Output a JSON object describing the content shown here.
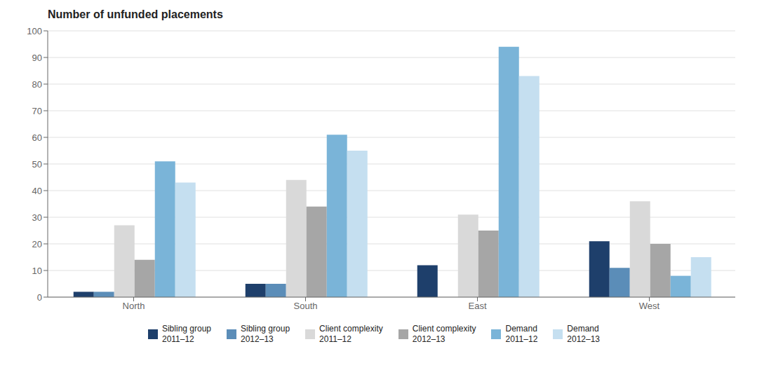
{
  "chart_data": {
    "type": "bar",
    "title": "Number of unfunded placements",
    "categories": [
      "North",
      "South",
      "East",
      "West"
    ],
    "series": [
      {
        "name": "Sibling group\n2011–12",
        "color": "#1e3f6b",
        "values": [
          2,
          5,
          12,
          21
        ]
      },
      {
        "name": "Sibling group\n2012–13",
        "color": "#5b8db8",
        "values": [
          2,
          5,
          0,
          11
        ]
      },
      {
        "name": "Client complexity\n2011–12",
        "color": "#d9d9d9",
        "values": [
          27,
          44,
          31,
          36
        ]
      },
      {
        "name": "Client complexity\n2012–13",
        "color": "#a6a6a6",
        "values": [
          14,
          34,
          25,
          20
        ]
      },
      {
        "name": "Demand\n2011–12",
        "color": "#7ab4d8",
        "values": [
          51,
          61,
          94,
          8
        ]
      },
      {
        "name": "Demand\n2012–13",
        "color": "#c5dff0",
        "values": [
          43,
          55,
          83,
          15
        ]
      }
    ],
    "ylim": [
      0,
      100
    ],
    "yticks": [
      0,
      10,
      20,
      30,
      40,
      50,
      60,
      70,
      80,
      90,
      100
    ],
    "grid": true,
    "legend": "bottom"
  }
}
